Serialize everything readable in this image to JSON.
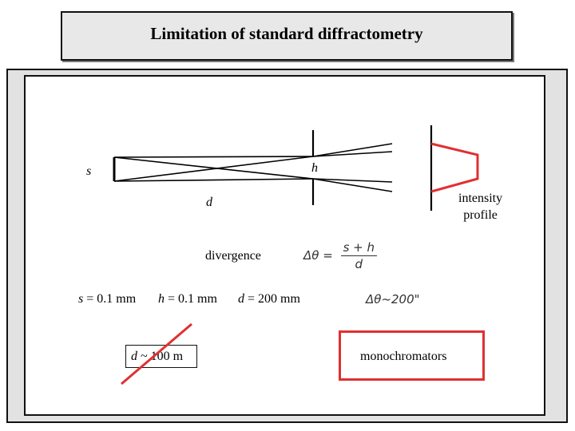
{
  "title": "Limitation of standard diffractometry",
  "diagram": {
    "label_s": "s",
    "label_h": "h",
    "label_d": "d",
    "intensity_line1": "intensity",
    "intensity_line2": "profile",
    "divergence_label": "divergence",
    "formula_lhs": "Δθ =",
    "formula_num": "s + h",
    "formula_den": "d"
  },
  "params": {
    "s_sym": "s",
    "s_val": " = 0.1 mm",
    "h_sym": "h",
    "h_val": " = 0.1 mm",
    "d_sym": "d",
    "d_val": " = 200 mm",
    "result": "Δθ~200\""
  },
  "crossed": {
    "sym": "d",
    "val": " ~ 100 m"
  },
  "monochromators_label": "monochromators",
  "colors": {
    "accent": "#e03030",
    "title_bg": "#e8e8e8",
    "frame_bg": "#e2e2e2"
  }
}
